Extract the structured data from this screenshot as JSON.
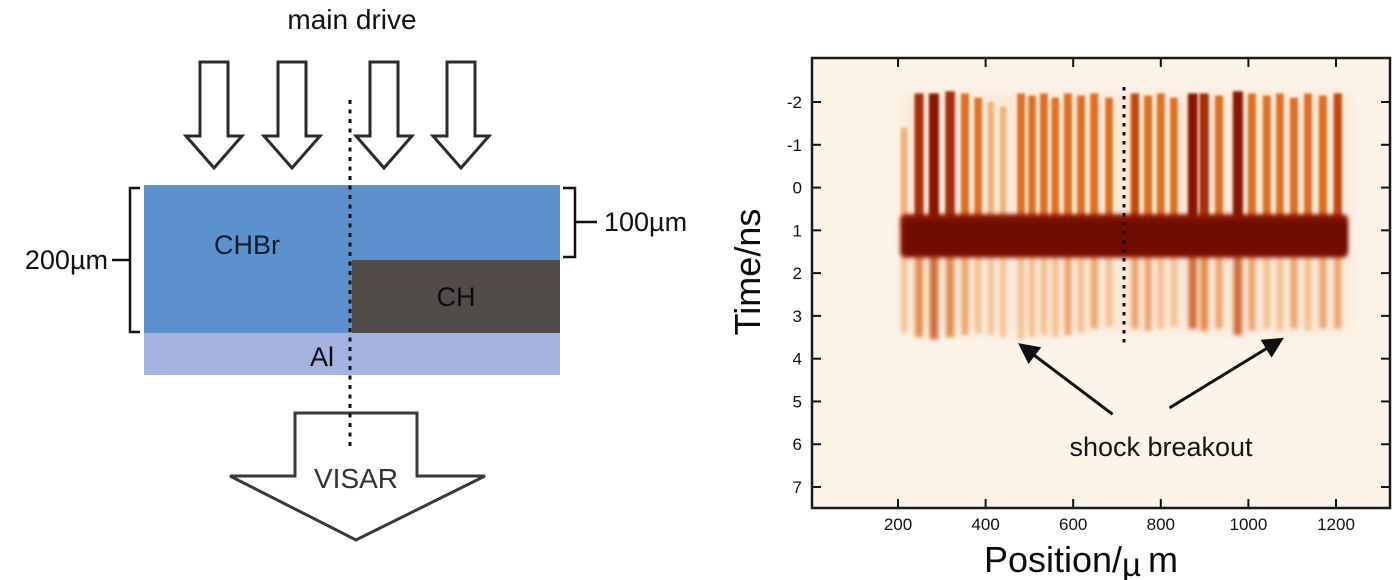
{
  "figure": {
    "left_panel": {
      "title": "main drive",
      "layers": [
        {
          "label": "CHBr",
          "color": "#5b91cd",
          "text_color": "#101c2c"
        },
        {
          "label": "CH",
          "color": "#4f4c4a",
          "text_color": "#0c0c0c"
        },
        {
          "label": "Al",
          "color": "#a4b2e2",
          "text_color": "#0c0c0c"
        }
      ],
      "dim_left": "200µm",
      "dim_right": "100µm",
      "detector_label": "VISAR",
      "beam_arrow_count": 4
    },
    "right_panel": {
      "ylabel": "Time/ns",
      "xlabel_prefix": "Position/",
      "xlabel_mu": "µ",
      "xlabel_suffix": "m",
      "annotation_label": "shock breakout"
    }
  },
  "colors": {
    "plot_background": "#fdf3e9",
    "band_outer": "#8a1804",
    "band_inner": "#6f0b00",
    "axis": "#111111",
    "annotation_text": "#151515",
    "stripe_palette": [
      "#f2b379",
      "#e88f48",
      "#dd6f24",
      "#c24a10",
      "#a82d08",
      "#8a1503"
    ]
  },
  "chart_data": {
    "type": "heatmap",
    "title": "",
    "xlabel": "Position/µm",
    "ylabel": "Time/ns",
    "xlim": [
      0,
      1320
    ],
    "ylim": [
      -3,
      7.5
    ],
    "y_increases_downward": true,
    "grid": false,
    "xticks": [
      200,
      400,
      600,
      800,
      1000,
      1200
    ],
    "yticks": [
      -2,
      -1,
      0,
      1,
      2,
      3,
      4,
      5,
      6,
      7
    ],
    "dark_band": {
      "x_range": [
        205,
        1228
      ],
      "t_range": [
        0.62,
        1.64
      ],
      "inner_x_range": [
        213,
        1222
      ],
      "inner_t_range": [
        0.76,
        1.54
      ]
    },
    "dotted_line": {
      "x": 716,
      "t_range": [
        -2.35,
        3.65
      ]
    },
    "stripe_segments": {
      "upper_end_t": 0.9,
      "lower_start_t": 1.52
    },
    "stripes": [
      [
        214,
        0.35,
        -1.4,
        3.4
      ],
      [
        248,
        0.8,
        -2.2,
        3.5
      ],
      [
        282,
        1.0,
        -2.2,
        3.55
      ],
      [
        319,
        0.9,
        -2.25,
        3.5
      ],
      [
        353,
        0.6,
        -2.2,
        3.45
      ],
      [
        383,
        0.5,
        -2.1,
        3.4
      ],
      [
        412,
        0.3,
        -2.0,
        3.45
      ],
      [
        440,
        0.28,
        -1.9,
        3.5
      ],
      [
        481,
        0.55,
        -2.2,
        3.55
      ],
      [
        506,
        0.5,
        -2.15,
        3.5
      ],
      [
        533,
        0.55,
        -2.2,
        3.45
      ],
      [
        559,
        0.5,
        -2.1,
        3.5
      ],
      [
        588,
        0.6,
        -2.2,
        3.45
      ],
      [
        618,
        0.55,
        -2.15,
        3.4
      ],
      [
        648,
        0.6,
        -2.2,
        3.3
      ],
      [
        682,
        0.5,
        -2.1,
        3.25
      ],
      [
        741,
        0.65,
        -2.2,
        3.3
      ],
      [
        771,
        0.6,
        -2.15,
        3.35
      ],
      [
        800,
        0.55,
        -2.2,
        3.3
      ],
      [
        830,
        0.5,
        -2.1,
        3.25
      ],
      [
        873,
        0.95,
        -2.2,
        3.3
      ],
      [
        899,
        0.85,
        -2.2,
        3.35
      ],
      [
        933,
        0.6,
        -2.15,
        3.3
      ],
      [
        976,
        1.0,
        -2.25,
        3.45
      ],
      [
        1008,
        0.6,
        -2.2,
        3.35
      ],
      [
        1042,
        0.55,
        -2.15,
        3.3
      ],
      [
        1072,
        0.5,
        -2.2,
        3.35
      ],
      [
        1104,
        0.6,
        -2.1,
        3.3
      ],
      [
        1136,
        0.55,
        -2.2,
        3.35
      ],
      [
        1170,
        0.6,
        -2.15,
        3.3
      ],
      [
        1204,
        0.65,
        -2.2,
        3.3
      ]
    ],
    "annotation": {
      "text": "shock breakout",
      "text_at": {
        "x": 800,
        "t": 6.1
      },
      "arrows": [
        {
          "from": {
            "x": 690,
            "t": 5.3
          },
          "to": {
            "x": 480,
            "t": 3.68
          }
        },
        {
          "from": {
            "x": 820,
            "t": 5.15
          },
          "to": {
            "x": 1075,
            "t": 3.55
          }
        }
      ]
    },
    "legend": null
  }
}
